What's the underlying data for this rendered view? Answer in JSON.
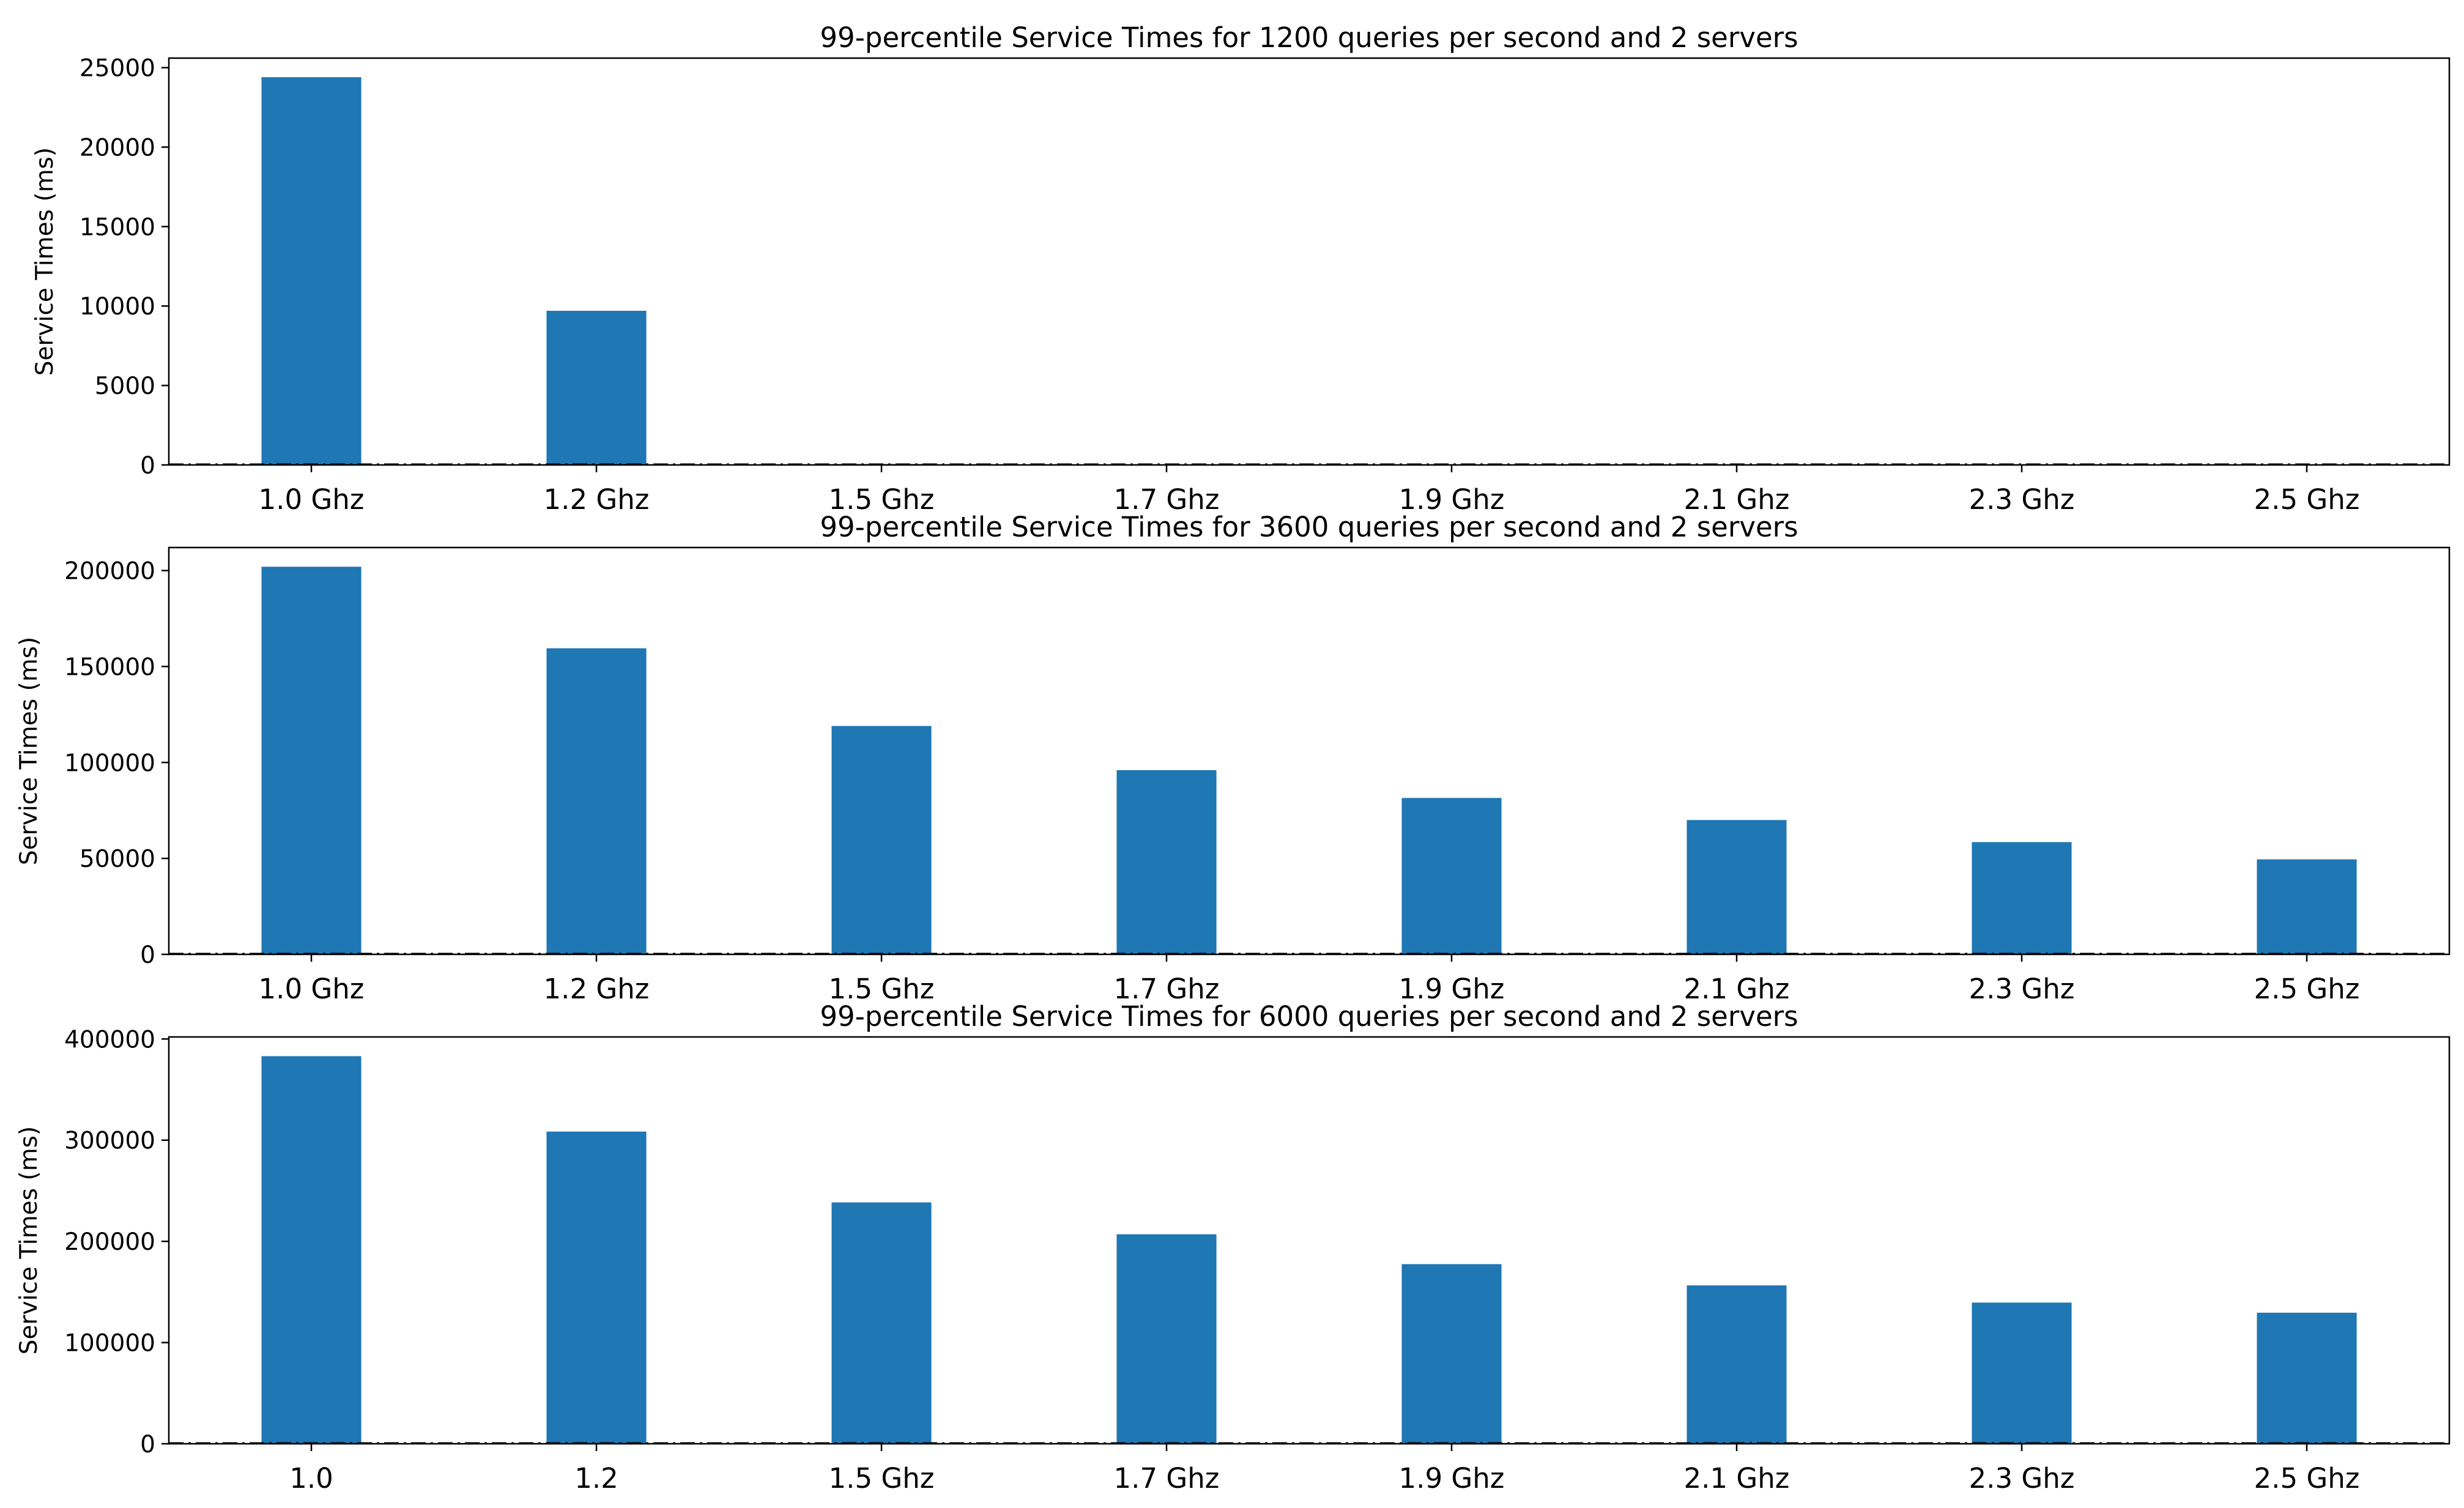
{
  "chart_data": [
    {
      "type": "bar",
      "title": "99-percentile Service Times for 1200 queries per second and 2 servers",
      "ylabel": "Service Times (ms)",
      "categories": [
        "1.0 Ghz",
        "1.2 Ghz",
        "1.5 Ghz",
        "1.7 Ghz",
        "1.9 Ghz",
        "2.1 Ghz",
        "2.3 Ghz",
        "2.5 Ghz"
      ],
      "values": [
        24400,
        9700,
        60,
        40,
        30,
        20,
        15,
        10
      ],
      "ylim": [
        0,
        25600
      ],
      "yticks": [
        0,
        5000,
        10000,
        15000,
        20000,
        25000
      ],
      "bar_color": "#1f77b4",
      "grid": false,
      "reference_line": {
        "value": 0,
        "style": "dash-dot"
      }
    },
    {
      "type": "bar",
      "title": "99-percentile Service Times for 3600 queries per second and 2 servers",
      "ylabel": "Service Times (ms)",
      "categories": [
        "1.0 Ghz",
        "1.2 Ghz",
        "1.5 Ghz",
        "1.7 Ghz",
        "1.9 Ghz",
        "2.1 Ghz",
        "2.3 Ghz",
        "2.5 Ghz"
      ],
      "values": [
        202000,
        159500,
        119000,
        96000,
        81500,
        70000,
        58500,
        49500
      ],
      "ylim": [
        0,
        212000
      ],
      "yticks": [
        0,
        50000,
        100000,
        150000,
        200000
      ],
      "bar_color": "#1f77b4",
      "grid": false,
      "reference_line": {
        "value": 0,
        "style": "dash-dot"
      }
    },
    {
      "type": "bar",
      "title": "99-percentile Service Times for 6000 queries per second and 2 servers",
      "ylabel": "Service Times (ms)",
      "categories": [
        "1.0",
        "1.2",
        "1.5 Ghz",
        "1.7 Ghz",
        "1.9 Ghz",
        "2.1 Ghz",
        "2.3 Ghz",
        "2.5 Ghz"
      ],
      "values": [
        383000,
        308500,
        238500,
        207000,
        177500,
        156500,
        139500,
        129500
      ],
      "ylim": [
        0,
        402000
      ],
      "yticks": [
        0,
        100000,
        200000,
        300000,
        400000
      ],
      "bar_color": "#1f77b4",
      "grid": false,
      "reference_line": {
        "value": 0,
        "style": "dash-dot"
      }
    }
  ]
}
